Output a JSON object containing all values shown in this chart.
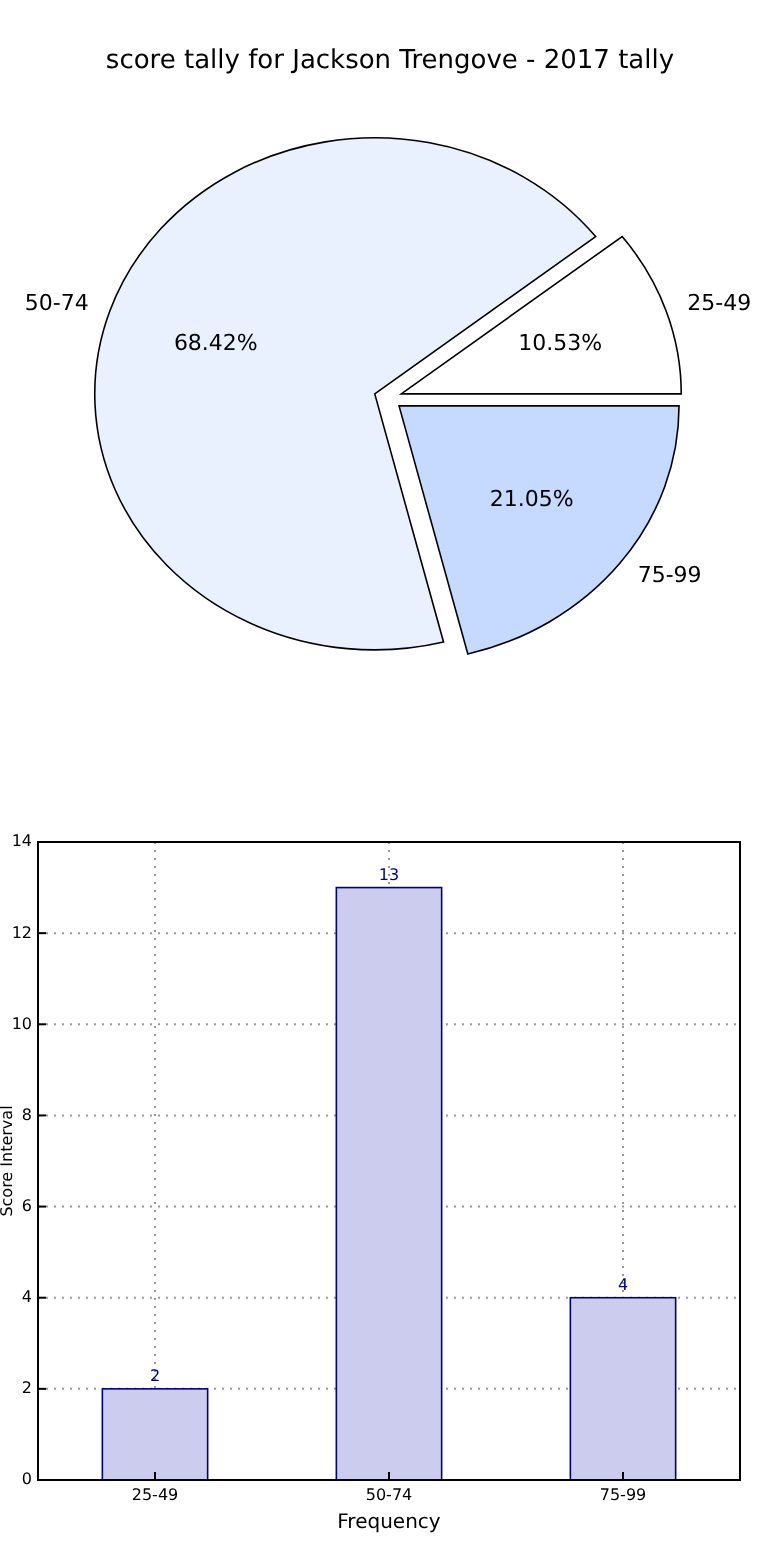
{
  "chart_data": [
    {
      "type": "pie",
      "title": "score tally for Jackson Trengove - 2017 tally",
      "categories": [
        "25-49",
        "50-74",
        "75-99"
      ],
      "values": [
        10.53,
        68.42,
        21.05
      ],
      "colors": [
        "#ffffff",
        "#eaf1fe",
        "#c6d9fe"
      ],
      "value_labels": [
        "10.53%",
        "68.42%",
        "21.05%"
      ]
    },
    {
      "type": "bar",
      "categories": [
        "25-49",
        "50-74",
        "75-99"
      ],
      "values": [
        2,
        13,
        4
      ],
      "color": "#ccccee",
      "xlabel": "Frequency",
      "ylabel": "Score Interval",
      "ylim": [
        0,
        14
      ],
      "yticks": [
        0,
        2,
        4,
        6,
        8,
        10,
        12,
        14
      ],
      "grid": true,
      "data_labels": true
    }
  ]
}
